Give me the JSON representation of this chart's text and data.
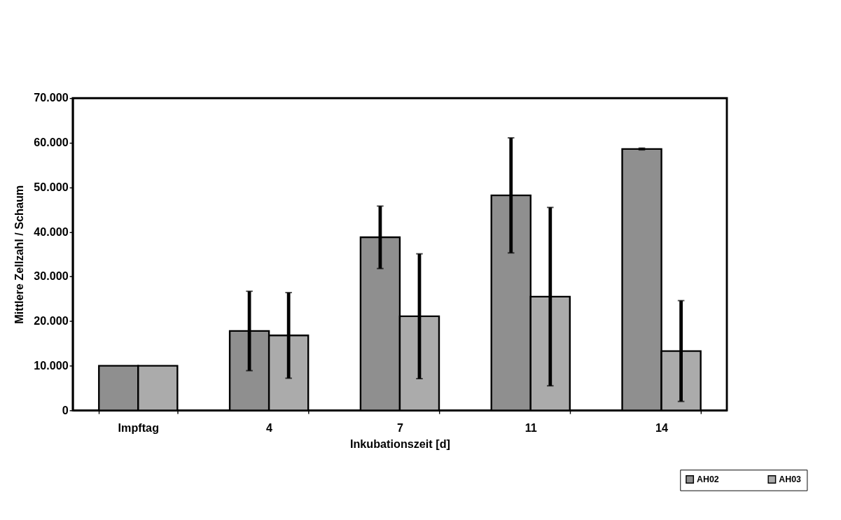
{
  "chart_data": {
    "type": "bar",
    "xlabel": "Inkubationszeit [d]",
    "ylabel": "Mittlere Zellzahl / Schaum",
    "categories": [
      "Impftag",
      "4",
      "7",
      "11",
      "14"
    ],
    "series": [
      {
        "name": "AH02",
        "color": "#8f8f8f",
        "values": [
          10000,
          17800,
          38800,
          48200,
          58600
        ],
        "errors": [
          null,
          8900,
          7000,
          12900,
          200
        ]
      },
      {
        "name": "AH03",
        "color": "#ababab",
        "values": [
          10000,
          16800,
          21100,
          25500,
          13300
        ],
        "errors": [
          null,
          9600,
          14000,
          20000,
          11300
        ]
      }
    ],
    "ylim": [
      0,
      70000
    ],
    "yticks": [
      0,
      {
        "value": 10000,
        "label": "10.000"
      },
      {
        "value": 20000,
        "label": "20.000"
      },
      {
        "value": 30000,
        "label": "30.000"
      },
      {
        "value": 40000,
        "label": "40.000"
      },
      {
        "value": 50000,
        "label": "50.000"
      },
      {
        "value": 60000,
        "label": "60.000"
      },
      {
        "value": 70000,
        "label": "70.000"
      }
    ],
    "grid": false,
    "legend": "bottom right"
  }
}
